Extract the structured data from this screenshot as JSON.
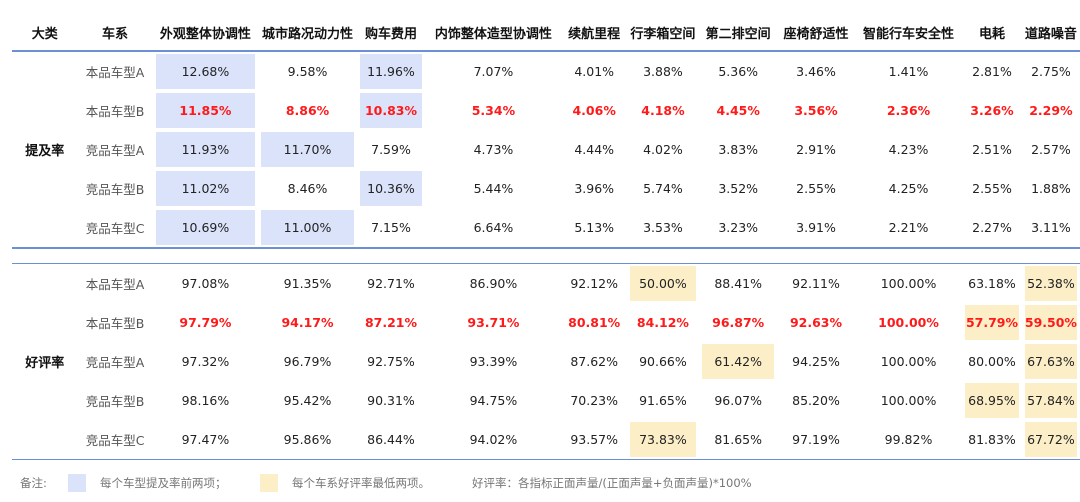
{
  "headers": [
    "大类",
    "车系",
    "外观整体协调性",
    "城市路况动力性",
    "购车费用",
    "内饰整体造型协调性",
    "续航里程",
    "行李箱空间",
    "第二排空间",
    "座椅舒适性",
    "智能行车安全性",
    "电耗",
    "道路噪音"
  ],
  "sections": [
    {
      "label": "提及率",
      "rows": [
        {
          "model": "本品车型A",
          "values": [
            "12.68%",
            "9.58%",
            "11.96%",
            "7.07%",
            "4.01%",
            "3.88%",
            "5.36%",
            "3.46%",
            "1.41%",
            "2.81%",
            "2.75%"
          ],
          "highlight": [
            0,
            2
          ],
          "red": false
        },
        {
          "model": "本品车型B",
          "values": [
            "11.85%",
            "8.86%",
            "10.83%",
            "5.34%",
            "4.06%",
            "4.18%",
            "4.45%",
            "3.56%",
            "2.36%",
            "3.26%",
            "2.29%"
          ],
          "highlight": [
            0,
            2
          ],
          "red": true
        },
        {
          "model": "竞品车型A",
          "values": [
            "11.93%",
            "11.70%",
            "7.59%",
            "4.73%",
            "4.44%",
            "4.02%",
            "3.83%",
            "2.91%",
            "4.23%",
            "2.51%",
            "2.57%"
          ],
          "highlight": [
            0,
            1
          ],
          "red": false
        },
        {
          "model": "竞品车型B",
          "values": [
            "11.02%",
            "8.46%",
            "10.36%",
            "5.44%",
            "3.96%",
            "5.74%",
            "3.52%",
            "2.55%",
            "4.25%",
            "2.55%",
            "1.88%"
          ],
          "highlight": [
            0,
            2
          ],
          "red": false
        },
        {
          "model": "竞品车型C",
          "values": [
            "10.69%",
            "11.00%",
            "7.15%",
            "6.64%",
            "5.13%",
            "3.53%",
            "3.23%",
            "3.91%",
            "2.21%",
            "2.27%",
            "3.11%"
          ],
          "highlight": [
            0,
            1
          ],
          "red": false
        }
      ]
    },
    {
      "label": "好评率",
      "rows": [
        {
          "model": "本品车型A",
          "values": [
            "97.08%",
            "91.35%",
            "92.71%",
            "86.90%",
            "92.12%",
            "50.00%",
            "88.41%",
            "92.11%",
            "100.00%",
            "63.18%",
            "52.38%"
          ],
          "highlight": [
            5,
            10
          ],
          "red": false
        },
        {
          "model": "本品车型B",
          "values": [
            "97.79%",
            "94.17%",
            "87.21%",
            "93.71%",
            "80.81%",
            "84.12%",
            "96.87%",
            "92.63%",
            "100.00%",
            "57.79%",
            "59.50%"
          ],
          "highlight": [
            9,
            10
          ],
          "red": true
        },
        {
          "model": "竞品车型A",
          "values": [
            "97.32%",
            "96.79%",
            "92.75%",
            "93.39%",
            "87.62%",
            "90.66%",
            "61.42%",
            "94.25%",
            "100.00%",
            "80.00%",
            "67.63%"
          ],
          "highlight": [
            6,
            10
          ],
          "red": false
        },
        {
          "model": "竞品车型B",
          "values": [
            "98.16%",
            "95.42%",
            "90.31%",
            "94.75%",
            "70.23%",
            "91.65%",
            "96.07%",
            "85.20%",
            "100.00%",
            "68.95%",
            "57.84%"
          ],
          "highlight": [
            9,
            10
          ],
          "red": false
        },
        {
          "model": "竞品车型C",
          "values": [
            "97.47%",
            "95.86%",
            "86.44%",
            "94.02%",
            "93.57%",
            "73.83%",
            "81.65%",
            "97.19%",
            "99.82%",
            "81.83%",
            "67.72%"
          ],
          "highlight": [
            5,
            10
          ],
          "red": false
        }
      ]
    }
  ],
  "footer": {
    "note_label": "备注:",
    "legend_blue": "每个车型提及率前两项；",
    "legend_yellow": "每个车系好评率最低两项。",
    "formula": "好评率：各指标正面声量/(正面声量+负面声量)*100%"
  },
  "colors": {
    "blue_highlight": "#dbe3fb",
    "yellow_highlight": "#fcefc8",
    "red_text": "#ff1a1a",
    "rule": "#6c8fd6"
  }
}
